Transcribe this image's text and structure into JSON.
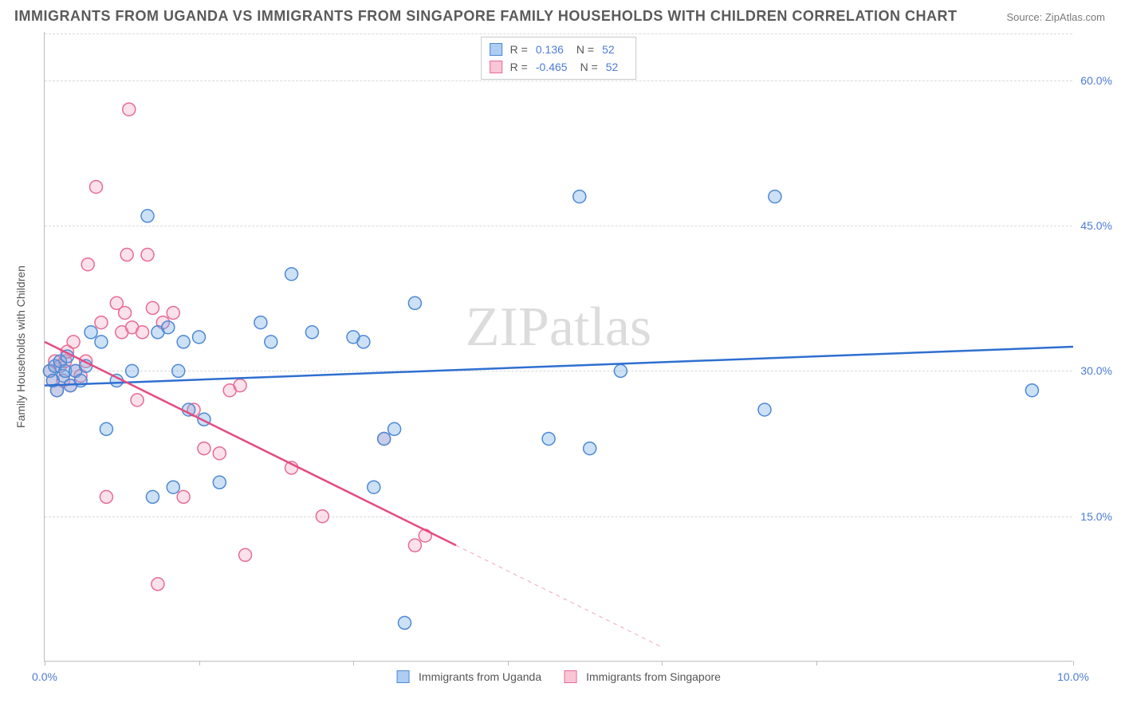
{
  "title": "IMMIGRANTS FROM UGANDA VS IMMIGRANTS FROM SINGAPORE FAMILY HOUSEHOLDS WITH CHILDREN CORRELATION CHART",
  "source": "Source: ZipAtlas.com",
  "watermark": "ZIPatlas",
  "y_axis_label": "Family Households with Children",
  "chart": {
    "type": "scatter",
    "background_color": "#ffffff",
    "grid_color": "#d8d8d8",
    "axis_color": "#bdbdbd",
    "tick_label_color": "#4d7bd6",
    "tick_fontsize": 14,
    "title_fontsize": 18,
    "xlim": [
      0.0,
      10.0
    ],
    "ylim": [
      0.0,
      65.0
    ],
    "x_ticks": [
      0.0,
      1.5,
      3.0,
      4.5,
      6.0,
      7.5,
      10.0
    ],
    "x_tick_labels": [
      "0.0%",
      "",
      "",
      "",
      "",
      "",
      "10.0%"
    ],
    "y_ticks": [
      15.0,
      30.0,
      45.0,
      60.0
    ],
    "y_tick_labels": [
      "15.0%",
      "30.0%",
      "45.0%",
      "60.0%"
    ],
    "marker_radius": 8,
    "marker_fill_opacity": 0.35,
    "marker_stroke_width": 1.5,
    "line_width": 2.5
  },
  "series": [
    {
      "name": "Immigrants from Uganda",
      "color": "#6ea8e6",
      "stroke": "#4d88d4",
      "line_color": "#2f6fd0",
      "r_label": "R =",
      "r_value": "0.136",
      "n_label": "N =",
      "n_value": "52",
      "trend": {
        "x1": 0.0,
        "y1": 28.5,
        "x2": 10.0,
        "y2": 32.5
      },
      "points": [
        [
          0.05,
          30
        ],
        [
          0.08,
          29
        ],
        [
          0.1,
          30.5
        ],
        [
          0.12,
          28
        ],
        [
          0.15,
          31
        ],
        [
          0.18,
          29.5
        ],
        [
          0.2,
          30
        ],
        [
          0.22,
          31.5
        ],
        [
          0.25,
          28.5
        ],
        [
          0.3,
          30
        ],
        [
          0.35,
          29
        ],
        [
          0.4,
          30.5
        ],
        [
          0.45,
          34
        ],
        [
          0.55,
          33
        ],
        [
          0.6,
          24
        ],
        [
          0.7,
          29
        ],
        [
          0.85,
          30
        ],
        [
          1.0,
          46
        ],
        [
          1.05,
          17
        ],
        [
          1.1,
          34
        ],
        [
          1.2,
          34.5
        ],
        [
          1.25,
          18
        ],
        [
          1.3,
          30
        ],
        [
          1.35,
          33
        ],
        [
          1.4,
          26
        ],
        [
          1.5,
          33.5
        ],
        [
          1.55,
          25
        ],
        [
          1.7,
          18.5
        ],
        [
          2.1,
          35
        ],
        [
          2.2,
          33
        ],
        [
          2.4,
          40
        ],
        [
          2.6,
          34
        ],
        [
          3.0,
          33.5
        ],
        [
          3.1,
          33
        ],
        [
          3.2,
          18
        ],
        [
          3.3,
          23
        ],
        [
          3.4,
          24
        ],
        [
          3.5,
          4
        ],
        [
          3.6,
          37
        ],
        [
          4.9,
          23
        ],
        [
          5.2,
          48
        ],
        [
          5.3,
          22
        ],
        [
          5.6,
          30
        ],
        [
          7.0,
          26
        ],
        [
          7.1,
          48
        ],
        [
          9.6,
          28
        ]
      ]
    },
    {
      "name": "Immigrants from Singapore",
      "color": "#f3a9c0",
      "stroke": "#e76b95",
      "line_color": "#e54a82",
      "r_label": "R =",
      "r_value": "-0.465",
      "n_label": "N =",
      "n_value": "52",
      "trend": {
        "x1": 0.0,
        "y1": 33.0,
        "x2": 4.0,
        "y2": 12.0
      },
      "trend_dash": {
        "x1": 4.0,
        "y1": 12.0,
        "x2": 6.0,
        "y2": 1.5
      },
      "points": [
        [
          0.05,
          30
        ],
        [
          0.08,
          29
        ],
        [
          0.1,
          31
        ],
        [
          0.12,
          28
        ],
        [
          0.15,
          30.5
        ],
        [
          0.18,
          29
        ],
        [
          0.2,
          31
        ],
        [
          0.22,
          32
        ],
        [
          0.25,
          28.5
        ],
        [
          0.28,
          33
        ],
        [
          0.3,
          30
        ],
        [
          0.35,
          29.5
        ],
        [
          0.4,
          31
        ],
        [
          0.42,
          41
        ],
        [
          0.5,
          49
        ],
        [
          0.55,
          35
        ],
        [
          0.6,
          17
        ],
        [
          0.7,
          37
        ],
        [
          0.75,
          34
        ],
        [
          0.78,
          36
        ],
        [
          0.8,
          42
        ],
        [
          0.82,
          57
        ],
        [
          0.85,
          34.5
        ],
        [
          0.9,
          27
        ],
        [
          0.95,
          34
        ],
        [
          1.0,
          42
        ],
        [
          1.05,
          36.5
        ],
        [
          1.1,
          8
        ],
        [
          1.15,
          35
        ],
        [
          1.25,
          36
        ],
        [
          1.35,
          17
        ],
        [
          1.45,
          26
        ],
        [
          1.55,
          22
        ],
        [
          1.7,
          21.5
        ],
        [
          1.8,
          28
        ],
        [
          1.9,
          28.5
        ],
        [
          1.95,
          11
        ],
        [
          2.4,
          20
        ],
        [
          2.7,
          15
        ],
        [
          3.6,
          12
        ],
        [
          3.7,
          13
        ],
        [
          3.3,
          23
        ]
      ]
    }
  ],
  "legend_bottom": [
    {
      "label": "Immigrants from Uganda",
      "fill": "#aecdf2",
      "stroke": "#4d88d4"
    },
    {
      "label": "Immigrants from Singapore",
      "fill": "#f9c6d6",
      "stroke": "#e76b95"
    }
  ]
}
